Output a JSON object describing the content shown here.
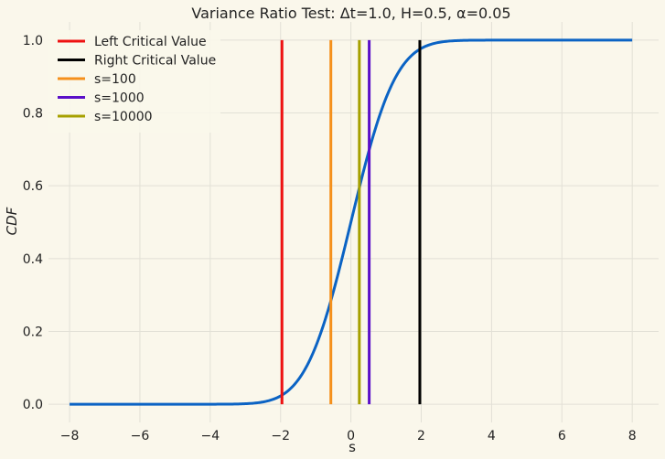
{
  "chart_data": {
    "type": "line",
    "title": "Variance Ratio Test: Δt=1.0, H=0.5, α=0.05",
    "xlabel": "s",
    "ylabel": "CDF",
    "xlim": [
      -8.6,
      8.75
    ],
    "ylim": [
      -0.05,
      1.05
    ],
    "xticks": [
      -8,
      -6,
      -4,
      -2,
      0,
      2,
      4,
      6,
      8
    ],
    "xtick_labels": [
      "−8",
      "−6",
      "−4",
      "−2",
      "0",
      "2",
      "4",
      "6",
      "8"
    ],
    "yticks": [
      0.0,
      0.2,
      0.4,
      0.6,
      0.8,
      1.0
    ],
    "ytick_labels": [
      "0.0",
      "0.2",
      "0.4",
      "0.6",
      "0.8",
      "1.0"
    ],
    "grid": true,
    "legend_position": "top-left",
    "curve": {
      "kind": "normal-cdf",
      "mean": 0,
      "std": 1,
      "x_range": [
        -8,
        8
      ],
      "color": "#0b63c4"
    },
    "vertical_lines": [
      {
        "name": "Left Critical Value",
        "x": -1.96,
        "color": "#ee1111"
      },
      {
        "name": "Right Critical Value",
        "x": 1.96,
        "color": "#000000"
      },
      {
        "name": "s=100",
        "x": -0.57,
        "color": "#f5901b"
      },
      {
        "name": "s=1000",
        "x": 0.52,
        "color": "#5a0fc8"
      },
      {
        "name": "s=10000",
        "x": 0.24,
        "color": "#a6a000"
      }
    ],
    "y_range_of_vertical_lines": [
      0,
      1
    ]
  },
  "colors": {
    "background": "#faf7eb",
    "grid": "#e2e0d6"
  }
}
